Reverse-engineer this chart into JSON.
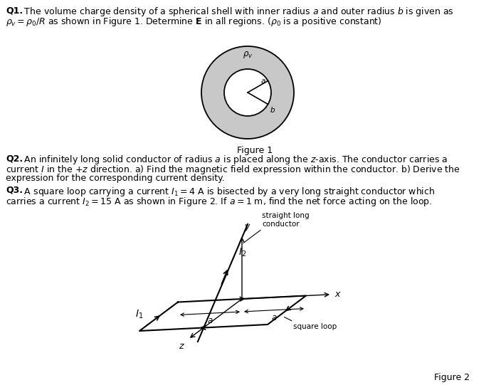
{
  "bg_color": "#ffffff",
  "fig_width": 6.97,
  "fig_height": 5.41,
  "shell_color": "#c8c8c8",
  "text_color": "#000000",
  "font_size": 9.0,
  "fig1_caption": "Figure 1",
  "fig2_caption": "Figure 2",
  "q1_bold": "Q1.",
  "q1_line1": " The volume charge density of a spherical shell with inner radius $a$ and outer radius $b$ is given as",
  "q1_line2": "$\\rho_v = \\rho_0/R$ as shown in Figure 1. Determine $\\mathbf{E}$ in all regions. ($\\rho_0$ is a positive constant)",
  "q2_bold": "Q2.",
  "q2_line1": " An infinitely long solid conductor of radius $a$ is placed along the $z$-axis. The conductor carries a",
  "q2_line2": "current $I$ in the $+z$ direction. a) Find the magnetic field expression within the conductor. b) Derive the",
  "q2_line3": "expression for the corresponding current density.",
  "q3_bold": "Q3.",
  "q3_line1": " A square loop carrying a current $I_1 = 4$ A is bisected by a very long straight conductor which",
  "q3_line2": "carries a current $I_2 = 15$ A as shown in Figure 2. If $a = 1$ m, find the net force acting on the loop."
}
